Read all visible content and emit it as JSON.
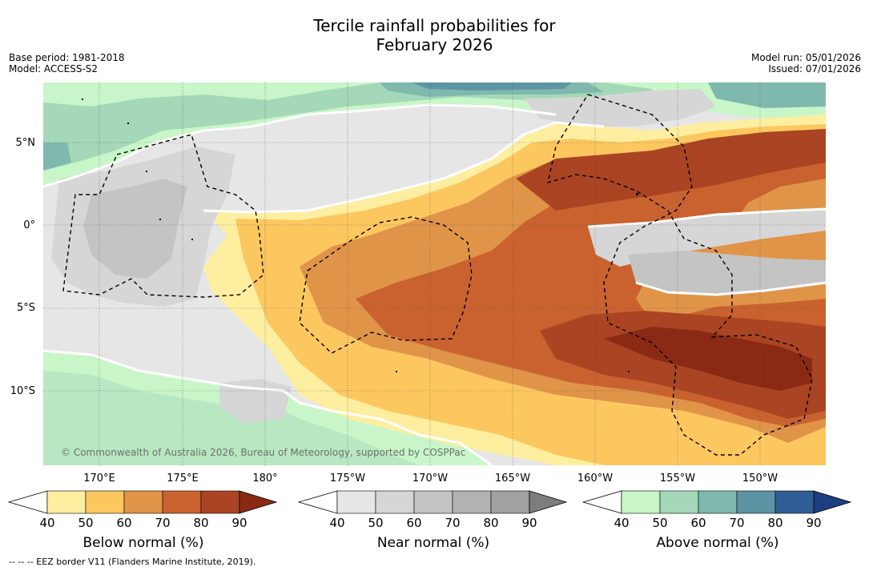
{
  "title": {
    "line1": "Tercile rainfall probabilities for",
    "line2": "February 2026"
  },
  "meta": {
    "base_period": "Base period: 1981-2018",
    "model": "Model: ACCESS-S2",
    "model_run": "Model run: 05/01/2026",
    "issued": "Issued: 07/01/2026"
  },
  "axes": {
    "lat_labels": [
      "5°N",
      "0°",
      "5°S",
      "10°S"
    ],
    "lon_labels": [
      "170°E",
      "175°E",
      "180°",
      "175°W",
      "170°W",
      "165°W",
      "160°W",
      "155°W",
      "150°W"
    ]
  },
  "copyright": "© Commonwealth of Australia 2026, Bureau of Meteorology, supported by COSPPac",
  "colorbars": [
    {
      "label": "Below normal (%)",
      "ticks": [
        "40",
        "50",
        "60",
        "70",
        "80",
        "90"
      ],
      "colors": [
        "#ffffff",
        "#feeea0",
        "#fdc760",
        "#e09448",
        "#c9622f",
        "#aa4423",
        "#8a2a14"
      ]
    },
    {
      "label": "Near normal (%)",
      "ticks": [
        "40",
        "50",
        "60",
        "70",
        "80",
        "90"
      ],
      "colors": [
        "#ffffff",
        "#e6e6e6",
        "#d6d6d6",
        "#c4c4c4",
        "#b2b2b2",
        "#a1a1a1",
        "#7d7d7d"
      ]
    },
    {
      "label": "Above normal (%)",
      "ticks": [
        "40",
        "50",
        "60",
        "70",
        "80",
        "90"
      ],
      "colors": [
        "#ffffff",
        "#c8f6c8",
        "#a4d8b8",
        "#7fb9ad",
        "#5c94a3",
        "#2f5e96",
        "#1c3f80"
      ]
    }
  ],
  "footnote": "--  --  -- EEZ border V11 (Flanders Marine Institute, 2019)."
}
